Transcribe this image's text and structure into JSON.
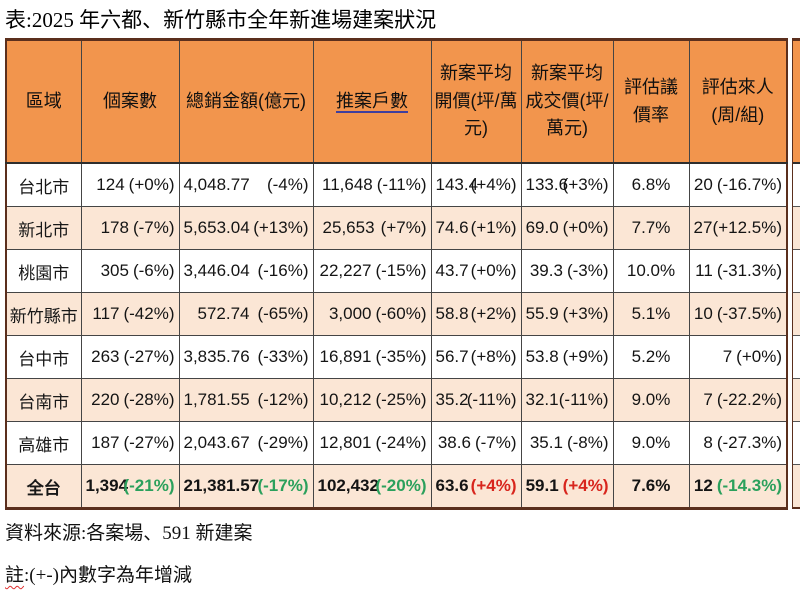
{
  "title": "表:2025 年六都、新竹縣市全年新進場建案狀況",
  "colors": {
    "orange": "#F2954D",
    "peach": "#FBE6D5",
    "up_red": "#D8251D",
    "down_green": "#2BA05C",
    "border_dark": "#5B2F1D",
    "underline_blue": "#3F3F9E"
  },
  "table": {
    "headers": [
      "區域",
      "個案數",
      "總銷金額(億元)",
      "推案戶數",
      "新案平均開價(坪/萬元)",
      "新案平均成交價(坪/萬元)",
      "評估議價率",
      "評估來人(周/組)"
    ],
    "rows": [
      {
        "region": "台北市",
        "cells": [
          [
            "124",
            "(+0%)"
          ],
          [
            "4,048.77",
            "(-4%)"
          ],
          [
            "11,648",
            "(-11%)"
          ],
          [
            "143.4",
            "(+4%)"
          ],
          [
            "133.6",
            "(+3%)"
          ],
          [
            "6.8%"
          ],
          [
            "20",
            "(-16.7%)"
          ]
        ]
      },
      {
        "region": "新北市",
        "cells": [
          [
            "178",
            "(-7%)"
          ],
          [
            "5,653.04",
            "(+13%)"
          ],
          [
            "25,653",
            "(+7%)"
          ],
          [
            "74.6",
            "(+1%)"
          ],
          [
            "69.0",
            "(+0%)"
          ],
          [
            "7.7%"
          ],
          [
            "27",
            "(+12.5%)"
          ]
        ]
      },
      {
        "region": "桃園市",
        "cells": [
          [
            "305",
            "(-6%)"
          ],
          [
            "3,446.04",
            "(-16%)"
          ],
          [
            "22,227",
            "(-15%)"
          ],
          [
            "43.7",
            "(+0%)"
          ],
          [
            "39.3",
            "(-3%)"
          ],
          [
            "10.0%"
          ],
          [
            "11",
            "(-31.3%)"
          ]
        ]
      },
      {
        "region": "新竹縣市",
        "cells": [
          [
            "117",
            "(-42%)"
          ],
          [
            "572.74",
            "(-65%)"
          ],
          [
            "3,000",
            "(-60%)"
          ],
          [
            "58.8",
            "(+2%)"
          ],
          [
            "55.9",
            "(+3%)"
          ],
          [
            "5.1%"
          ],
          [
            "10",
            "(-37.5%)"
          ]
        ]
      },
      {
        "region": "台中市",
        "cells": [
          [
            "263",
            "(-27%)"
          ],
          [
            "3,835.76",
            "(-33%)"
          ],
          [
            "16,891",
            "(-35%)"
          ],
          [
            "56.7",
            "(+8%)"
          ],
          [
            "53.8",
            "(+9%)"
          ],
          [
            "5.2%"
          ],
          [
            "7",
            "(+0%)"
          ]
        ]
      },
      {
        "region": "台南市",
        "cells": [
          [
            "220",
            "(-28%)"
          ],
          [
            "1,781.55",
            "(-12%)"
          ],
          [
            "10,212",
            "(-25%)"
          ],
          [
            "35.2",
            "(-11%)"
          ],
          [
            "32.1",
            "(-11%)"
          ],
          [
            "9.0%"
          ],
          [
            "7",
            "(-22.2%)"
          ]
        ]
      },
      {
        "region": "高雄市",
        "cells": [
          [
            "187",
            "(-27%)"
          ],
          [
            "2,043.67",
            "(-29%)"
          ],
          [
            "12,801",
            "(-24%)"
          ],
          [
            "38.6",
            "(-7%)"
          ],
          [
            "35.1",
            "(-8%)"
          ],
          [
            "9.0%"
          ],
          [
            "8",
            "(-27.3%)"
          ]
        ]
      },
      {
        "region": "全台",
        "is_total": true,
        "cells": [
          [
            "1,394",
            "(-21%)"
          ],
          [
            "21,381.57",
            "(-17%)"
          ],
          [
            "102,432",
            "(-20%)"
          ],
          [
            "63.6",
            "(+4%)"
          ],
          [
            "59.1",
            "(+4%)"
          ],
          [
            "7.6%"
          ],
          [
            "12",
            "(-14.3%)"
          ]
        ]
      }
    ]
  },
  "notes": {
    "source": "資料來源:各案場、591 新建案",
    "note_mark": "註",
    "note_body": ":(+-)內數字為年增減"
  }
}
